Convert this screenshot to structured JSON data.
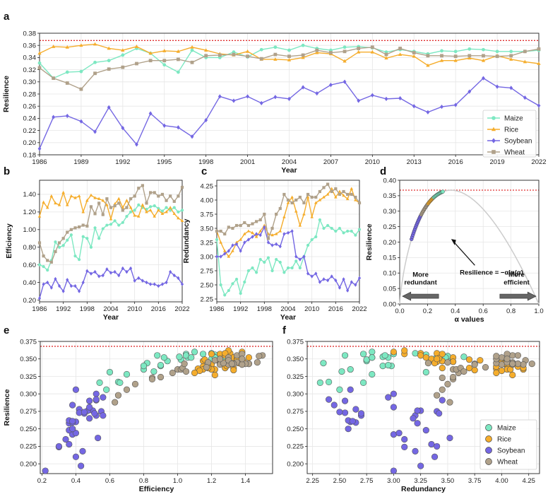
{
  "colors": {
    "Maize": "#7de8c2",
    "Rice": "#f5ad2c",
    "Soybean": "#7467e3",
    "Wheat": "#b0a18a",
    "threshold": "#e03030",
    "curve": "#cccccc"
  },
  "chart_data": [
    {
      "id": "a",
      "type": "line",
      "panel_label": "a",
      "xlabel": "Year",
      "ylabel": "Resilience",
      "xlim": [
        1986,
        2022
      ],
      "ylim": [
        0.18,
        0.38
      ],
      "xticks": [
        1986,
        1989,
        1992,
        1995,
        1998,
        2001,
        2004,
        2007,
        2010,
        2013,
        2016,
        2019,
        2022
      ],
      "yticks": [
        0.18,
        0.2,
        0.22,
        0.24,
        0.26,
        0.28,
        0.3,
        0.32,
        0.34,
        0.36,
        0.38
      ],
      "ytick_labels": [
        "0.18",
        "0.20",
        "0.22",
        "0.24",
        "0.26",
        "0.28",
        "0.30",
        "0.32",
        "0.34",
        "0.36",
        "0.38"
      ],
      "threshold": 0.368,
      "legend": [
        "Maize",
        "Rice",
        "Soybean",
        "Wheat"
      ],
      "x": [
        1986,
        1987,
        1988,
        1989,
        1990,
        1991,
        1992,
        1993,
        1994,
        1995,
        1996,
        1997,
        1998,
        1999,
        2000,
        2001,
        2002,
        2003,
        2004,
        2005,
        2006,
        2007,
        2008,
        2009,
        2010,
        2011,
        2012,
        2013,
        2014,
        2015,
        2016,
        2017,
        2018,
        2019,
        2020,
        2021,
        2022
      ],
      "series": [
        {
          "name": "Maize",
          "marker": "circle",
          "values": [
            0.331,
            0.306,
            0.316,
            0.317,
            0.332,
            0.335,
            0.344,
            0.355,
            0.347,
            0.328,
            0.316,
            0.352,
            0.34,
            0.34,
            0.349,
            0.341,
            0.353,
            0.357,
            0.352,
            0.36,
            0.355,
            0.352,
            0.357,
            0.358,
            0.356,
            0.349,
            0.353,
            0.35,
            0.346,
            0.351,
            0.35,
            0.354,
            0.353,
            0.35,
            0.35,
            0.35,
            0.352
          ]
        },
        {
          "name": "Rice",
          "marker": "triangle",
          "values": [
            0.347,
            0.358,
            0.357,
            0.36,
            0.362,
            0.355,
            0.352,
            0.358,
            0.347,
            0.351,
            0.35,
            0.357,
            0.352,
            0.346,
            0.344,
            0.35,
            0.337,
            0.337,
            0.336,
            0.34,
            0.348,
            0.346,
            0.334,
            0.349,
            0.349,
            0.339,
            0.345,
            0.342,
            0.327,
            0.335,
            0.335,
            0.339,
            0.335,
            0.343,
            0.337,
            0.333,
            0.33
          ]
        },
        {
          "name": "Soybean",
          "marker": "diamond",
          "values": [
            0.19,
            0.242,
            0.244,
            0.235,
            0.218,
            0.258,
            0.224,
            0.197,
            0.248,
            0.228,
            0.225,
            0.21,
            0.237,
            0.276,
            0.269,
            0.276,
            0.265,
            0.275,
            0.272,
            0.291,
            0.281,
            0.295,
            0.3,
            0.269,
            0.278,
            0.272,
            0.273,
            0.26,
            0.25,
            0.259,
            0.262,
            0.284,
            0.306,
            0.292,
            0.29,
            0.274,
            0.261
          ]
        },
        {
          "name": "Wheat",
          "marker": "square",
          "values": [
            0.323,
            0.306,
            0.298,
            0.288,
            0.314,
            0.321,
            0.324,
            0.33,
            0.335,
            0.335,
            0.337,
            0.332,
            0.343,
            0.344,
            0.345,
            0.342,
            0.338,
            0.345,
            0.342,
            0.344,
            0.352,
            0.348,
            0.35,
            0.355,
            0.357,
            0.345,
            0.355,
            0.348,
            0.343,
            0.343,
            0.342,
            0.343,
            0.343,
            0.342,
            0.343,
            0.35,
            0.354
          ]
        }
      ]
    },
    {
      "id": "b",
      "type": "line",
      "panel_label": "b",
      "xlabel": "Year",
      "ylabel": "Efficiency",
      "xlim": [
        1986,
        2022
      ],
      "ylim": [
        0.18,
        1.56
      ],
      "xticks": [
        1986,
        1992,
        1998,
        2004,
        2010,
        2016,
        2022
      ],
      "yticks": [
        0.2,
        0.4,
        0.6,
        0.8,
        1.0,
        1.2,
        1.4
      ],
      "ytick_labels": [
        "0.20",
        "0.40",
        "0.60",
        "0.80",
        "1.00",
        "1.20",
        "1.40"
      ],
      "x": [
        1986,
        1987,
        1988,
        1989,
        1990,
        1991,
        1992,
        1993,
        1994,
        1995,
        1996,
        1997,
        1998,
        1999,
        2000,
        2001,
        2002,
        2003,
        2004,
        2005,
        2006,
        2007,
        2008,
        2009,
        2010,
        2011,
        2012,
        2013,
        2014,
        2015,
        2016,
        2017,
        2018,
        2019,
        2020,
        2021,
        2022
      ],
      "series": [
        {
          "name": "Maize",
          "marker": "circle",
          "values": [
            0.6,
            0.58,
            0.54,
            0.65,
            0.86,
            0.8,
            0.82,
            0.88,
            0.94,
            0.7,
            0.66,
            0.92,
            0.9,
            0.8,
            1.02,
            0.9,
            1.01,
            1.05,
            1.06,
            1.1,
            1.05,
            1.08,
            1.15,
            1.2,
            1.22,
            1.28,
            1.25,
            1.23,
            1.26,
            1.27,
            1.24,
            1.21,
            1.25,
            1.22,
            1.25,
            1.2,
            1.22
          ]
        },
        {
          "name": "Rice",
          "marker": "triangle",
          "values": [
            1.15,
            1.31,
            1.25,
            1.38,
            1.3,
            1.28,
            1.42,
            1.28,
            1.38,
            1.36,
            1.38,
            1.2,
            1.33,
            1.39,
            1.36,
            1.35,
            1.33,
            1.28,
            1.12,
            1.29,
            1.35,
            1.25,
            1.33,
            1.25,
            1.16,
            1.15,
            1.28,
            1.2,
            1.22,
            1.15,
            1.22,
            1.18,
            1.2,
            1.25,
            1.18,
            1.13,
            1.1
          ]
        },
        {
          "name": "Soybean",
          "marker": "diamond",
          "values": [
            0.22,
            0.38,
            0.4,
            0.34,
            0.44,
            0.36,
            0.3,
            0.43,
            0.36,
            0.36,
            0.3,
            0.4,
            0.53,
            0.5,
            0.52,
            0.47,
            0.48,
            0.55,
            0.51,
            0.52,
            0.48,
            0.56,
            0.52,
            0.56,
            0.42,
            0.45,
            0.42,
            0.4,
            0.38,
            0.38,
            0.36,
            0.38,
            0.4,
            0.52,
            0.48,
            0.45,
            0.38
          ]
        },
        {
          "name": "Wheat",
          "marker": "square",
          "values": [
            0.85,
            0.7,
            0.65,
            0.63,
            0.75,
            0.85,
            0.9,
            0.97,
            1.0,
            1.02,
            1.03,
            1.05,
            1.04,
            1.26,
            1.18,
            1.3,
            1.17,
            1.35,
            1.25,
            1.27,
            1.3,
            1.22,
            1.25,
            1.35,
            1.38,
            1.47,
            1.5,
            1.3,
            1.42,
            1.42,
            1.38,
            1.4,
            1.33,
            1.38,
            1.32,
            1.38,
            1.48
          ]
        }
      ]
    },
    {
      "id": "c",
      "type": "line",
      "panel_label": "c",
      "xlabel": "Year",
      "ylabel": "Redundancy",
      "xlim": [
        1986,
        2022
      ],
      "ylim": [
        2.2,
        4.35
      ],
      "xticks": [
        1986,
        1992,
        1998,
        2004,
        2010,
        2016,
        2022
      ],
      "yticks": [
        2.25,
        2.5,
        2.75,
        3.0,
        3.25,
        3.5,
        3.75,
        4.0,
        4.25
      ],
      "ytick_labels": [
        "2.25",
        "2.50",
        "2.75",
        "3.00",
        "3.25",
        "3.50",
        "3.75",
        "4.00",
        "4.25"
      ],
      "x": [
        1986,
        1987,
        1988,
        1989,
        1990,
        1991,
        1992,
        1993,
        1994,
        1995,
        1996,
        1997,
        1998,
        1999,
        2000,
        2001,
        2002,
        2003,
        2004,
        2005,
        2006,
        2007,
        2008,
        2009,
        2010,
        2011,
        2012,
        2013,
        2014,
        2015,
        2016,
        2017,
        2018,
        2019,
        2020,
        2021,
        2022
      ],
      "series": [
        {
          "name": "Maize",
          "marker": "circle",
          "values": [
            3.3,
            2.5,
            2.32,
            2.4,
            2.52,
            2.6,
            2.35,
            2.55,
            2.75,
            2.8,
            2.72,
            2.95,
            2.9,
            2.98,
            2.75,
            2.95,
            2.9,
            2.72,
            2.8,
            2.8,
            2.92,
            2.8,
            3.0,
            3.2,
            3.3,
            3.35,
            3.65,
            3.5,
            3.55,
            3.5,
            3.45,
            3.5,
            3.42,
            3.45,
            3.45,
            3.38,
            3.48
          ]
        },
        {
          "name": "Rice",
          "marker": "triangle",
          "values": [
            3.45,
            3.25,
            3.1,
            3.0,
            3.1,
            3.25,
            3.3,
            3.4,
            3.45,
            3.42,
            3.35,
            3.45,
            3.55,
            3.4,
            3.38,
            3.4,
            3.45,
            3.7,
            3.95,
            4.05,
            3.8,
            3.55,
            3.75,
            4.05,
            3.7,
            3.95,
            4.0,
            4.05,
            4.1,
            4.2,
            4.05,
            4.15,
            4.08,
            4.02,
            4.2,
            4.0,
            3.95
          ]
        },
        {
          "name": "Soybean",
          "marker": "diamond",
          "values": [
            3.0,
            3.0,
            3.05,
            3.1,
            3.2,
            3.22,
            3.1,
            3.25,
            3.3,
            3.35,
            3.4,
            3.38,
            3.52,
            3.25,
            3.2,
            3.22,
            3.18,
            3.4,
            3.42,
            3.45,
            3.0,
            2.95,
            3.0,
            2.7,
            2.65,
            2.7,
            2.55,
            2.6,
            2.58,
            2.65,
            2.58,
            2.45,
            2.6,
            2.4,
            2.55,
            2.5,
            2.62
          ]
        },
        {
          "name": "Wheat",
          "marker": "square",
          "values": [
            3.45,
            3.45,
            3.4,
            3.52,
            3.5,
            3.55,
            3.55,
            3.6,
            3.55,
            3.58,
            3.62,
            3.65,
            3.75,
            3.32,
            3.5,
            3.75,
            3.85,
            4.1,
            4.0,
            3.95,
            4.0,
            4.05,
            3.95,
            4.1,
            4.05,
            4.05,
            4.15,
            4.22,
            4.28,
            4.15,
            4.2,
            4.1,
            4.15,
            4.1,
            4.1,
            4.05,
            3.95
          ]
        }
      ]
    },
    {
      "id": "d",
      "type": "line",
      "panel_label": "d",
      "xlabel": "α values",
      "ylabel": "Resilience",
      "xlim": [
        0,
        1
      ],
      "ylim": [
        0,
        0.4
      ],
      "xticks": [
        0,
        0.2,
        0.4,
        0.6,
        0.8,
        1.0
      ],
      "xtick_labels": [
        "0.0",
        "0.2",
        "0.4",
        "0.6",
        "0.8",
        "1.0"
      ],
      "yticks": [
        0,
        0.05,
        0.1,
        0.15,
        0.2,
        0.25,
        0.3,
        0.35,
        0.4
      ],
      "ytick_labels": [
        "0.00",
        "0.05",
        "0.10",
        "0.15",
        "0.20",
        "0.25",
        "0.30",
        "0.35",
        "0.40"
      ],
      "threshold": 0.368,
      "curve": "Resilience = −α ln(α)",
      "formula_label": "Resilience = −αln(α)",
      "annotation_left": [
        "More",
        "redundant"
      ],
      "annotation_right": [
        "More",
        "efficient"
      ],
      "alpha_points": [
        0.085,
        0.09,
        0.095,
        0.1,
        0.105,
        0.11,
        0.115,
        0.12,
        0.125,
        0.13,
        0.135,
        0.14,
        0.145,
        0.15,
        0.155,
        0.16,
        0.165,
        0.17,
        0.175,
        0.18,
        0.185,
        0.19,
        0.195,
        0.2,
        0.205,
        0.21,
        0.215,
        0.22,
        0.225,
        0.23,
        0.235,
        0.24,
        0.245,
        0.25,
        0.255,
        0.26,
        0.265,
        0.27,
        0.275,
        0.28,
        0.285,
        0.29,
        0.295,
        0.3,
        0.305,
        0.31
      ]
    },
    {
      "id": "e",
      "type": "scatter",
      "panel_label": "e",
      "xlabel": "Efficiency",
      "ylabel": "Resilience",
      "xlim": [
        0.19,
        1.56
      ],
      "ylim": [
        0.186,
        0.375
      ],
      "xticks": [
        0.2,
        0.4,
        0.6,
        0.8,
        1.0,
        1.2,
        1.4
      ],
      "xtick_labels": [
        "0.2",
        "0.4",
        "0.6",
        "0.8",
        "1.0",
        "1.2",
        "1.4"
      ],
      "yticks": [
        0.2,
        0.225,
        0.25,
        0.275,
        0.3,
        0.325,
        0.35,
        0.375
      ],
      "ytick_labels": [
        "0.200",
        "0.225",
        "0.250",
        "0.275",
        "0.300",
        "0.325",
        "0.350",
        "0.375"
      ],
      "threshold": 0.368,
      "x_source": "b",
      "y_source": "a"
    },
    {
      "id": "f",
      "type": "scatter",
      "panel_label": "f",
      "xlabel": "Redundancy",
      "ylabel": "",
      "xlim": [
        2.2,
        4.35
      ],
      "ylim": [
        0.186,
        0.375
      ],
      "xticks": [
        2.25,
        2.5,
        2.75,
        3.0,
        3.25,
        3.5,
        3.75,
        4.0,
        4.25
      ],
      "xtick_labels": [
        "2.25",
        "2.50",
        "2.75",
        "3.00",
        "3.25",
        "3.50",
        "3.75",
        "4.00",
        "4.25"
      ],
      "yticks": [
        0.2,
        0.225,
        0.25,
        0.275,
        0.3,
        0.325,
        0.35,
        0.375
      ],
      "ytick_labels": [
        "0.200",
        "0.225",
        "0.250",
        "0.275",
        "0.300",
        "0.325",
        "0.350",
        "0.375"
      ],
      "threshold": 0.368,
      "legend": [
        "Maize",
        "Rice",
        "Soybean",
        "Wheat"
      ],
      "x_source": "c",
      "y_source": "a"
    }
  ]
}
